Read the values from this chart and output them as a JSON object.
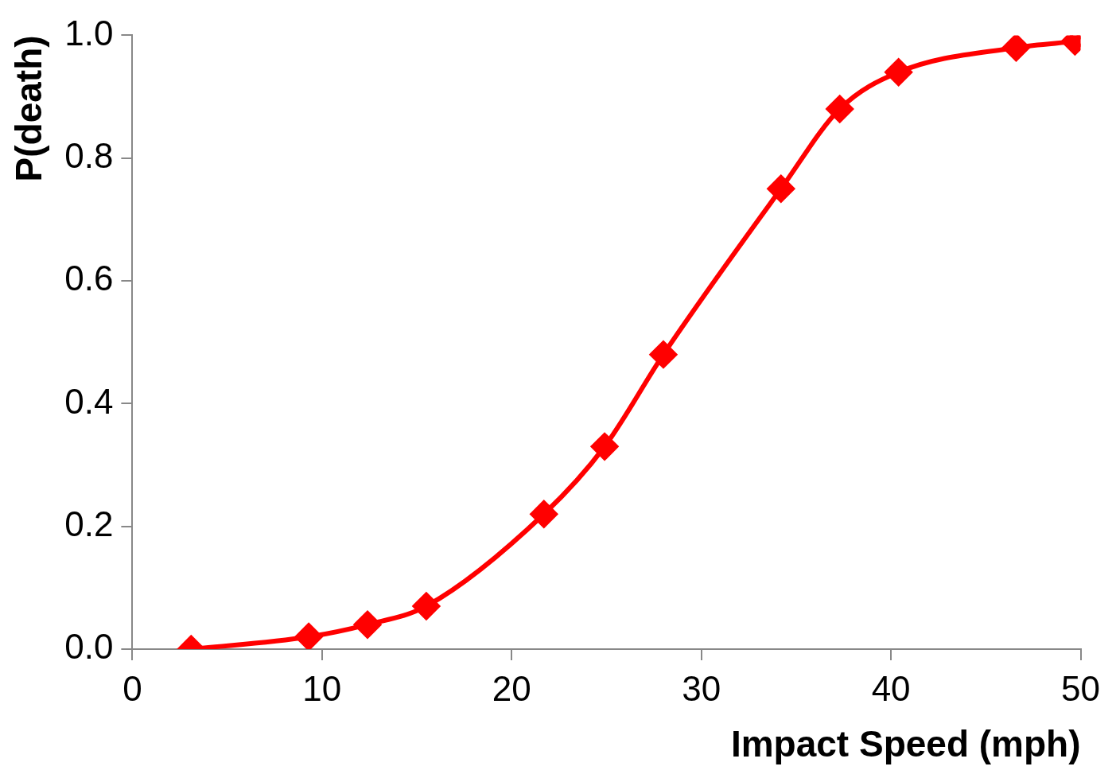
{
  "chart_data": {
    "type": "line",
    "xlabel": "Impact Speed (mph)",
    "ylabel": "P(death)",
    "x": [
      3.1,
      9.3,
      12.4,
      15.5,
      21.7,
      24.9,
      28.0,
      34.2,
      37.3,
      40.4,
      46.6,
      49.7
    ],
    "series": [
      {
        "color": "#ff0000",
        "values": [
          0,
          0.02,
          0.04,
          0.07,
          0.22,
          0.33,
          0.48,
          0.75,
          0.88,
          0.94,
          0.98,
          0.99
        ]
      }
    ],
    "xlim": [
      0,
      50
    ],
    "xticks": [
      0,
      10,
      20,
      30,
      40,
      50
    ],
    "ylim": [
      0,
      1
    ],
    "yticks": [
      {
        "value": 0,
        "label": "0.0"
      },
      {
        "value": 0.2,
        "label": "0.2"
      },
      {
        "value": 0.4,
        "label": "0.4"
      },
      {
        "value": 0.6,
        "label": "0.6"
      },
      {
        "value": 0.8,
        "label": "0.8"
      },
      {
        "value": 1,
        "label": "1.0"
      }
    ],
    "grid": false,
    "legend": false,
    "marker": "diamond",
    "line_style": "solid"
  }
}
